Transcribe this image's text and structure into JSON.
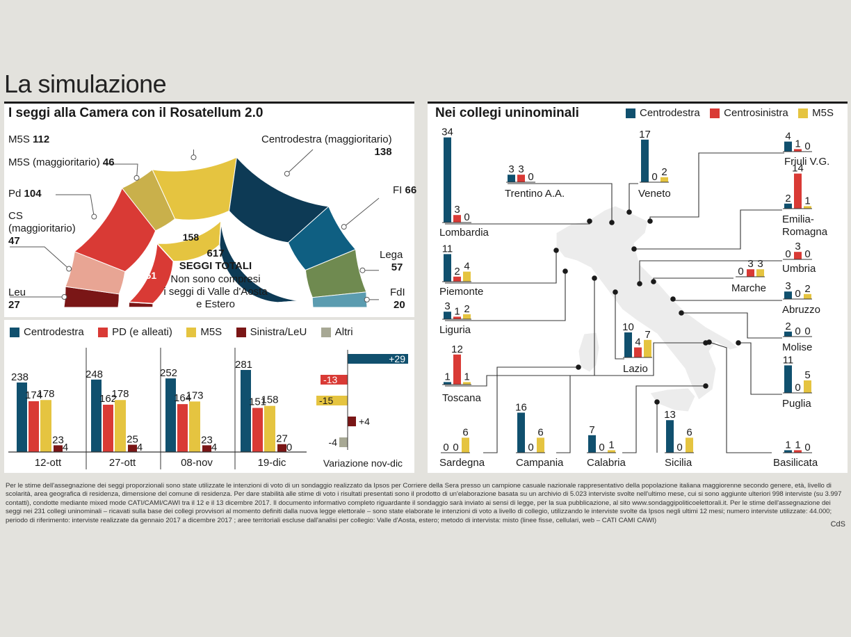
{
  "title": "La simulazione",
  "colors": {
    "centrodestra": "#10506e",
    "cd_magg": "#0d3a55",
    "fi": "#0f5f82",
    "lega": "#6f8a50",
    "fdi": "#5b9cb0",
    "pd": "#d93a35",
    "cs_magg": "#e8a594",
    "leu": "#7a1616",
    "m5s": "#e5c440",
    "m5s_magg": "#c9b04b",
    "altri": "#a7a894"
  },
  "left_panel": {
    "header": "I seggi alla Camera con il Rosatellum 2.0",
    "labels": [
      {
        "name": "M5S",
        "value": "112"
      },
      {
        "name": "M5S (maggioritario)",
        "value": "46"
      },
      {
        "name": "Pd",
        "value": "104"
      },
      {
        "name": "CS (maggioritario)",
        "value": "47"
      },
      {
        "name": "Leu",
        "value": "27"
      },
      {
        "name": "Centrodestra (maggioritario)",
        "value": "138"
      },
      {
        "name": "FI",
        "value": "66"
      },
      {
        "name": "Lega",
        "value": "57"
      },
      {
        "name": "FdI",
        "value": "20"
      }
    ],
    "inner": {
      "total": "617",
      "total_label": "SEGGI TOTALI",
      "note": [
        "Non sono compresi",
        "i seggi di Valle d'Aosta",
        "e Estero"
      ],
      "values": [
        "151",
        "158",
        "281"
      ]
    },
    "legend": [
      "Centrodestra",
      "PD (e alleati)",
      "M5S",
      "Sinistra/LeU",
      "Altri"
    ]
  },
  "right_panel": {
    "header": "Nei collegi uninominali",
    "legend": [
      "Centrodestra",
      "Centrosinistra",
      "M5S"
    ]
  },
  "chart_data": [
    {
      "type": "pie",
      "title": "I seggi alla Camera con il Rosatellum 2.0",
      "categories": [
        "Leu",
        "CS (maggioritario)",
        "Pd",
        "M5S (maggioritario)",
        "M5S",
        "Centrodestra (maggioritario)",
        "FI",
        "Lega",
        "FdI"
      ],
      "values": [
        27,
        47,
        104,
        46,
        112,
        138,
        66,
        57,
        20
      ]
    },
    {
      "type": "bar",
      "categories": [
        "12-ott",
        "27-ott",
        "08-nov",
        "19-dic"
      ],
      "series": [
        {
          "name": "Centrodestra",
          "values": [
            238,
            248,
            252,
            281
          ]
        },
        {
          "name": "PD (e alleati)",
          "values": [
            174,
            162,
            164,
            151
          ]
        },
        {
          "name": "M5S",
          "values": [
            178,
            178,
            173,
            158
          ]
        },
        {
          "name": "Sinistra/LeU",
          "values": [
            23,
            25,
            23,
            27
          ]
        },
        {
          "name": "Altri",
          "values": [
            4,
            4,
            4,
            0
          ]
        }
      ]
    },
    {
      "type": "bar",
      "xlabel": "Variazione nov-dic",
      "categories": [
        "Centrodestra",
        "PD (e alleati)",
        "M5S",
        "Sinistra/LeU",
        "Altri"
      ],
      "values": [
        29,
        -13,
        -15,
        4,
        -4
      ],
      "labels": [
        "+29",
        "-13",
        "-15",
        "+4",
        "-4"
      ]
    },
    {
      "type": "bar",
      "title": "Nei collegi uninominali",
      "series_names": [
        "Centrodestra",
        "Centrosinistra",
        "M5S"
      ],
      "regions": [
        {
          "name": [
            "Lombardia"
          ],
          "values": [
            34,
            3,
            0
          ]
        },
        {
          "name": [
            "Trentino A.A."
          ],
          "values": [
            3,
            3,
            0
          ]
        },
        {
          "name": [
            "Veneto"
          ],
          "values": [
            17,
            0,
            2
          ]
        },
        {
          "name": [
            "Friuli V.G."
          ],
          "values": [
            4,
            1,
            0
          ]
        },
        {
          "name": [
            "Emilia-",
            "Romagna"
          ],
          "values": [
            2,
            14,
            1
          ]
        },
        {
          "name": [
            "Piemonte"
          ],
          "values": [
            11,
            2,
            4
          ]
        },
        {
          "name": [
            "Umbria"
          ],
          "values": [
            0,
            3,
            0
          ]
        },
        {
          "name": [
            "Marche"
          ],
          "values": [
            0,
            3,
            3
          ]
        },
        {
          "name": [
            "Liguria"
          ],
          "values": [
            3,
            1,
            2
          ]
        },
        {
          "name": [
            "Abruzzo"
          ],
          "values": [
            3,
            0,
            2
          ]
        },
        {
          "name": [
            "Lazio"
          ],
          "values": [
            10,
            4,
            7
          ]
        },
        {
          "name": [
            "Molise"
          ],
          "values": [
            2,
            0,
            0
          ]
        },
        {
          "name": [
            "Toscana"
          ],
          "values": [
            1,
            12,
            1
          ]
        },
        {
          "name": [
            "Puglia"
          ],
          "values": [
            11,
            0,
            5
          ]
        },
        {
          "name": [
            "Sardegna"
          ],
          "values": [
            0,
            0,
            6
          ]
        },
        {
          "name": [
            "Campania"
          ],
          "values": [
            16,
            0,
            6
          ]
        },
        {
          "name": [
            "Calabria"
          ],
          "values": [
            7,
            0,
            1
          ]
        },
        {
          "name": [
            "Sicilia"
          ],
          "values": [
            13,
            0,
            6
          ]
        },
        {
          "name": [
            "Basilicata"
          ],
          "values": [
            1,
            1,
            0
          ]
        }
      ]
    }
  ],
  "footnote": "Per le stime dell'assegnazione dei seggi proporzionali sono state utilizzate le intenzioni di voto di un sondaggio realizzato da Ipsos per Corriere della Sera presso un campione casuale nazionale rappresentativo della popolazione italiana maggiorenne secondo genere, età, livello di scolarità, area geografica di residenza, dimensione del comune di residenza. Per dare stabilità alle stime di voto i risultati presentati sono il prodotto di un'elaborazione basata su un archivio di 5.023 interviste svolte nell'ultimo mese, cui si sono aggiunte ulteriori 998 interviste (su 3.997 contatti), condotte mediante mixed mode CATI/CAMI/CAWI tra il 12 e il 13 dicembre 2017. Il documento informativo completo riguardante il sondaggio sarà inviato ai sensi di legge, per la sua pubblicazione, al sito www.sondaggipoliticoelettorali.it. Per le stime dell'assegnazione dei seggi nei 231 collegi uninominali – ricavati sulla base dei collegi provvisori al momento definiti dalla nuova legge elettorale – sono state elaborate le intenzioni di voto a livello di collegio, utilizzando le interviste svolte da Ipsos negli ultimi 12 mesi; numero interviste utilizzate: 44.000; periodo di riferimento: interviste realizzate da gennaio 2017 a dicembre 2017 ; aree territoriali escluse dall'analisi per collegio: Valle d'Aosta, estero; metodo di intervista: misto (linee fisse, cellulari, web – CATI CAMI CAWI)",
  "credit": "CdS"
}
